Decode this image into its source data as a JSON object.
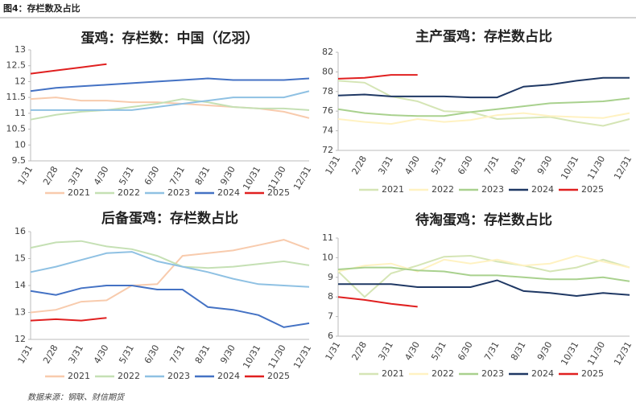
{
  "figure_title": "图4：存栏数及占比",
  "source": "数据来源：钢联、财信期货",
  "chart_data": [
    {
      "type": "line",
      "title": "蛋鸡：存栏数：中国（亿羽）",
      "categories": [
        "1/31",
        "2/28",
        "3/31",
        "4/30",
        "5/31",
        "6/30",
        "7/31",
        "8/31",
        "9/30",
        "10/31",
        "11/30",
        "12/31"
      ],
      "ylim": [
        9.5,
        13
      ],
      "yticks": [
        9.5,
        10,
        10.5,
        11,
        11.5,
        12,
        12.5,
        13
      ],
      "series": [
        {
          "name": "2021",
          "color": "#f8cbad",
          "values": [
            11.45,
            11.5,
            11.4,
            11.4,
            11.35,
            11.35,
            11.3,
            11.25,
            11.2,
            11.15,
            11.05,
            10.85
          ]
        },
        {
          "name": "2022",
          "color": "#c5e0b4",
          "values": [
            10.8,
            10.95,
            11.05,
            11.1,
            11.2,
            11.3,
            11.45,
            11.35,
            11.2,
            11.15,
            11.15,
            11.1
          ]
        },
        {
          "name": "2023",
          "color": "#8fc1e3",
          "values": [
            11.1,
            11.1,
            11.1,
            11.1,
            11.1,
            11.2,
            11.3,
            11.4,
            11.5,
            11.5,
            11.5,
            11.7
          ]
        },
        {
          "name": "2024",
          "color": "#4472c4",
          "values": [
            11.7,
            11.8,
            11.85,
            11.9,
            11.95,
            12.0,
            12.05,
            12.1,
            12.05,
            12.05,
            12.05,
            12.1
          ]
        },
        {
          "name": "2025",
          "color": "#e02020",
          "values": [
            12.25,
            12.35,
            12.45,
            12.55,
            null,
            null,
            null,
            null,
            null,
            null,
            null,
            null
          ]
        }
      ]
    },
    {
      "type": "line",
      "title": "主产蛋鸡：存栏数占比",
      "categories": [
        "1/31",
        "2/28",
        "3/31",
        "4/30",
        "5/31",
        "6/30",
        "7/31",
        "8/31",
        "9/30",
        "10/31",
        "11/30",
        "12/31"
      ],
      "ylim": [
        72,
        82
      ],
      "yticks": [
        72,
        74,
        76,
        78,
        80,
        82
      ],
      "series": [
        {
          "name": "2021",
          "color": "#d5e5b5",
          "values": [
            79.1,
            78.9,
            77.5,
            77.0,
            76.0,
            75.9,
            75.2,
            75.3,
            75.4,
            74.9,
            74.5,
            75.2
          ]
        },
        {
          "name": "2022",
          "color": "#fff2c2",
          "values": [
            75.2,
            74.9,
            74.7,
            75.2,
            74.9,
            75.1,
            75.6,
            75.8,
            75.5,
            75.4,
            75.3,
            75.8
          ]
        },
        {
          "name": "2023",
          "color": "#a9d18e",
          "values": [
            76.2,
            75.8,
            75.6,
            75.5,
            75.5,
            75.9,
            76.2,
            76.5,
            76.8,
            76.9,
            77.0,
            77.3
          ]
        },
        {
          "name": "2024",
          "color": "#1f3864",
          "values": [
            77.6,
            77.7,
            77.5,
            77.5,
            77.5,
            77.4,
            77.4,
            78.5,
            78.7,
            79.1,
            79.4,
            79.4
          ]
        },
        {
          "name": "2025",
          "color": "#e02020",
          "values": [
            79.3,
            79.4,
            79.7,
            79.7,
            null,
            null,
            null,
            null,
            null,
            null,
            null,
            null
          ]
        }
      ]
    },
    {
      "type": "line",
      "title": "后备蛋鸡：存栏数占比",
      "categories": [
        "1/31",
        "2/28",
        "3/31",
        "4/30",
        "5/31",
        "6/30",
        "7/31",
        "8/31",
        "9/30",
        "10/31",
        "11/30",
        "12/31"
      ],
      "ylim": [
        12,
        16
      ],
      "yticks": [
        12,
        13,
        14,
        15,
        16
      ],
      "series": [
        {
          "name": "2021",
          "color": "#f8cbad",
          "values": [
            13.0,
            13.1,
            13.4,
            13.45,
            14.0,
            14.05,
            15.1,
            15.2,
            15.3,
            15.5,
            15.7,
            15.35
          ]
        },
        {
          "name": "2022",
          "color": "#c5e0b4",
          "values": [
            15.4,
            15.6,
            15.65,
            15.45,
            15.35,
            15.1,
            14.7,
            14.65,
            14.7,
            14.8,
            14.9,
            14.75
          ]
        },
        {
          "name": "2023",
          "color": "#8fc1e3",
          "values": [
            14.5,
            14.7,
            14.95,
            15.2,
            15.25,
            14.9,
            14.7,
            14.5,
            14.25,
            14.05,
            14.0,
            13.95
          ]
        },
        {
          "name": "2024",
          "color": "#4472c4",
          "values": [
            13.8,
            13.65,
            13.9,
            14.0,
            14.0,
            13.85,
            13.85,
            13.2,
            13.1,
            12.9,
            12.45,
            12.6
          ]
        },
        {
          "name": "2025",
          "color": "#e02020",
          "values": [
            12.7,
            12.75,
            12.7,
            12.8,
            null,
            null,
            null,
            null,
            null,
            null,
            null,
            null
          ]
        }
      ]
    },
    {
      "type": "line",
      "title": "待淘蛋鸡：存栏数占比",
      "categories": [
        "1/31",
        "2/28",
        "3/31",
        "4/30",
        "5/31",
        "6/30",
        "7/31",
        "8/31",
        "9/30",
        "10/31",
        "11/30",
        "12/31"
      ],
      "ylim": [
        6,
        11
      ],
      "yticks": [
        6,
        7,
        8,
        9,
        10,
        11
      ],
      "series": [
        {
          "name": "2021",
          "color": "#d5e5b5",
          "values": [
            9.3,
            8.0,
            9.2,
            9.6,
            10.05,
            10.1,
            9.8,
            9.6,
            9.3,
            9.5,
            9.9,
            9.5
          ]
        },
        {
          "name": "2022",
          "color": "#fff2c2",
          "values": [
            9.3,
            9.6,
            9.7,
            9.3,
            9.9,
            9.7,
            9.9,
            9.6,
            9.7,
            10.1,
            9.8,
            9.5
          ]
        },
        {
          "name": "2023",
          "color": "#a9d18e",
          "values": [
            9.4,
            9.5,
            9.5,
            9.35,
            9.3,
            9.1,
            9.1,
            9.0,
            8.9,
            8.9,
            9.0,
            8.8
          ]
        },
        {
          "name": "2024",
          "color": "#1f3864",
          "values": [
            8.65,
            8.65,
            8.65,
            8.5,
            8.5,
            8.5,
            8.85,
            8.3,
            8.2,
            8.05,
            8.2,
            8.1
          ]
        },
        {
          "name": "2025",
          "color": "#e02020",
          "values": [
            8.0,
            7.85,
            7.65,
            7.5,
            null,
            null,
            null,
            null,
            null,
            null,
            null,
            null
          ]
        }
      ]
    }
  ]
}
